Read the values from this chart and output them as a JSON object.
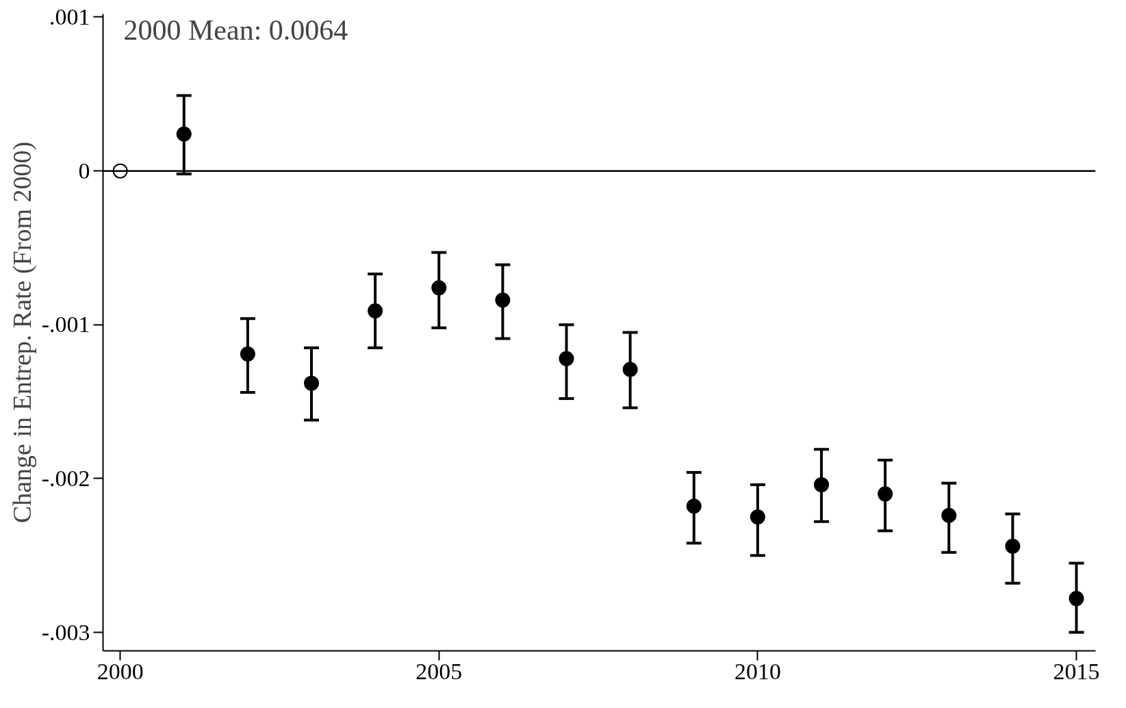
{
  "chart_data": {
    "type": "scatter",
    "ylabel": "Change in Entrep. Rate (From 2000)",
    "annotations": [
      "2000 Mean: 0.0064"
    ],
    "series": [
      {
        "color": "#000000",
        "x": [
          2000
        ],
        "values": [
          0
        ]
      },
      {
        "color": "#000000",
        "x": [
          2001,
          2002,
          2003,
          2004,
          2005,
          2006,
          2007,
          2008,
          2009,
          2010,
          2011,
          2012,
          2013,
          2014,
          2015
        ],
        "values": [
          0.00024,
          -0.00119,
          -0.00138,
          -0.00091,
          -0.00076,
          -0.00084,
          -0.00122,
          -0.00129,
          -0.00218,
          -0.00225,
          -0.00204,
          -0.0021,
          -0.00224,
          -0.00244,
          -0.00278
        ],
        "errors": [
          [
            -2e-05,
            0.00049
          ],
          [
            -0.00144,
            -0.00096
          ],
          [
            -0.00162,
            -0.00115
          ],
          [
            -0.00115,
            -0.00067
          ],
          [
            -0.00102,
            -0.00053
          ],
          [
            -0.00109,
            -0.00061
          ],
          [
            -0.00148,
            -0.001
          ],
          [
            -0.00154,
            -0.00105
          ],
          [
            -0.00242,
            -0.00196
          ],
          [
            -0.0025,
            -0.00204
          ],
          [
            -0.00228,
            -0.00181
          ],
          [
            -0.00234,
            -0.00188
          ],
          [
            -0.00248,
            -0.00203
          ],
          [
            -0.00268,
            -0.00223
          ],
          [
            -0.003,
            -0.00255
          ]
        ]
      }
    ],
    "marker": "circle",
    "xlim": [
      1999.73,
      2015.3
    ],
    "xticks": [
      2000,
      2005,
      2010,
      2015
    ],
    "ylim": [
      -0.00312,
      0.00102
    ],
    "yticks": [
      {
        "value": 0.001,
        "label": ".001"
      },
      0,
      {
        "value": -0.001,
        "label": "-.001"
      },
      {
        "value": -0.002,
        "label": "-.002"
      },
      {
        "value": -0.003,
        "label": "-.003"
      }
    ],
    "ref_lines": [
      {
        "axis": "y",
        "value": 0,
        "color": "#000000"
      }
    ],
    "grid": false
  }
}
